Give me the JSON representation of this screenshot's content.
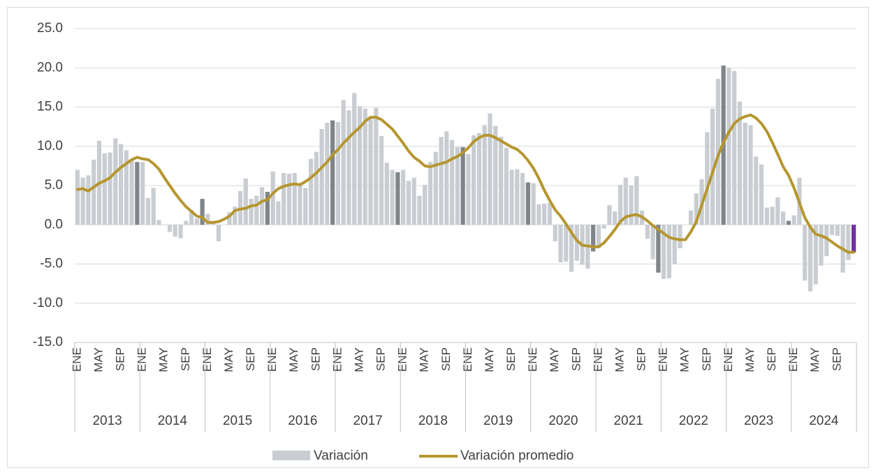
{
  "chart_data": {
    "type": "bar_line",
    "categories": [
      "ENE",
      null,
      null,
      null,
      "MAY",
      null,
      null,
      null,
      "SEP",
      null,
      null,
      null,
      "ENE",
      null,
      null,
      null,
      "MAY",
      null,
      null,
      null,
      "SEP",
      null,
      null,
      null,
      "ENE",
      null,
      null,
      null,
      "MAY",
      null,
      null,
      null,
      "SEP",
      null,
      null,
      null,
      "ENE",
      null,
      null,
      null,
      "MAY",
      null,
      null,
      null,
      "SEP",
      null,
      null,
      null,
      "ENE",
      null,
      null,
      null,
      "MAY",
      null,
      null,
      null,
      "SEP",
      null,
      null,
      null,
      "ENE",
      null,
      null,
      null,
      "MAY",
      null,
      null,
      null,
      "SEP",
      null,
      null,
      null,
      "ENE",
      null,
      null,
      null,
      "MAY",
      null,
      null,
      null,
      "SEP",
      null,
      null,
      null,
      "ENE",
      null,
      null,
      null,
      "MAY",
      null,
      null,
      null,
      "SEP",
      null,
      null,
      null,
      "ENE",
      null,
      null,
      null,
      "MAY",
      null,
      null,
      null,
      "SEP",
      null,
      null,
      null,
      "ENE",
      null,
      null,
      null,
      "MAY",
      null,
      null,
      null,
      "SEP",
      null,
      null,
      null,
      "ENE",
      null,
      null,
      null,
      "MAY",
      null,
      null,
      null,
      "SEP",
      null,
      null,
      null,
      "ENE",
      null,
      null,
      null,
      "MAY",
      null,
      null,
      null,
      "SEP",
      null,
      null,
      null
    ],
    "groups": [
      "2013",
      "2014",
      "2015",
      "2016",
      "2017",
      "2018",
      "2019",
      "2020",
      "2021",
      "2022",
      "2023",
      "2024"
    ],
    "series": [
      {
        "name": "Variación",
        "type": "bar",
        "color": "#c9cdd2",
        "period_end_color": "#7f8588",
        "last_color": "#7030a0",
        "values": [
          7.0,
          6.0,
          6.3,
          8.3,
          10.7,
          9.1,
          9.2,
          11.0,
          10.3,
          9.5,
          8.3,
          8.0,
          8.0,
          3.4,
          4.7,
          0.6,
          0.0,
          -0.9,
          -1.5,
          -1.7,
          0.5,
          1.9,
          0.8,
          3.3,
          1.4,
          0.2,
          -2.1,
          0.0,
          1.6,
          2.3,
          4.3,
          5.9,
          3.3,
          3.7,
          4.8,
          4.2,
          6.8,
          3.0,
          6.6,
          6.5,
          6.6,
          5.3,
          4.7,
          8.4,
          9.3,
          12.2,
          13.0,
          13.3,
          13.1,
          15.9,
          14.6,
          16.8,
          15.1,
          14.8,
          13.6,
          14.9,
          11.3,
          7.9,
          7.0,
          6.7,
          7.0,
          5.6,
          6.0,
          3.7,
          5.1,
          8.0,
          9.3,
          11.2,
          11.9,
          10.8,
          9.9,
          9.9,
          9.0,
          11.4,
          11.7,
          12.7,
          14.2,
          12.6,
          11.2,
          9.8,
          7.0,
          7.1,
          6.6,
          5.4,
          5.3,
          2.6,
          2.7,
          2.8,
          -2.1,
          -4.8,
          -4.7,
          -6.0,
          -4.6,
          -5.1,
          -5.6,
          -3.4,
          -3.0,
          -0.5,
          2.5,
          1.7,
          5.1,
          6.0,
          5.0,
          6.2,
          1.8,
          -1.8,
          -4.4,
          -6.1,
          -6.9,
          -6.8,
          -5.0,
          -3.0,
          0.0,
          1.8,
          4.0,
          5.8,
          11.8,
          14.8,
          18.6,
          20.3,
          20.0,
          19.6,
          15.7,
          13.0,
          12.7,
          8.7,
          7.7,
          2.2,
          2.3,
          3.5,
          1.7,
          0.5,
          1.2,
          6.0,
          -7.1,
          -8.5,
          -7.6,
          -5.2,
          -4.0,
          -1.3,
          -1.4,
          -6.1,
          -4.5,
          -3.5
        ]
      },
      {
        "name": "Variación promedio",
        "type": "line",
        "color": "#b5962f",
        "values": [
          4.5,
          4.6,
          4.3,
          4.8,
          5.3,
          5.6,
          6.0,
          6.7,
          7.3,
          7.8,
          8.3,
          8.6,
          8.4,
          8.3,
          7.8,
          7.1,
          6.0,
          5.0,
          4.0,
          3.1,
          2.3,
          1.7,
          1.1,
          0.9,
          0.3,
          0.3,
          0.4,
          0.7,
          1.1,
          1.8,
          2.0,
          2.1,
          2.4,
          2.5,
          3.0,
          3.2,
          4.0,
          4.6,
          4.9,
          5.1,
          5.2,
          5.1,
          5.5,
          6.0,
          6.6,
          7.3,
          8.0,
          8.9,
          9.6,
          10.4,
          11.1,
          11.8,
          12.4,
          13.2,
          13.7,
          13.7,
          13.4,
          12.8,
          12.2,
          11.3,
          10.4,
          9.4,
          8.6,
          8.1,
          7.5,
          7.4,
          7.6,
          7.8,
          8.0,
          8.4,
          8.7,
          9.2,
          9.8,
          10.6,
          11.1,
          11.4,
          11.4,
          11.1,
          10.7,
          10.3,
          9.9,
          9.6,
          9.0,
          8.2,
          7.2,
          5.9,
          4.4,
          3.1,
          1.9,
          1.1,
          0.1,
          -1.0,
          -2.0,
          -2.6,
          -2.7,
          -2.8,
          -2.8,
          -2.3,
          -1.5,
          -0.6,
          0.4,
          1.0,
          1.2,
          1.3,
          1.0,
          0.5,
          -0.1,
          -0.6,
          -1.1,
          -1.6,
          -1.8,
          -1.9,
          -1.9,
          -0.9,
          0.4,
          2.5,
          4.6,
          6.7,
          8.8,
          10.5,
          11.8,
          12.9,
          13.5,
          13.8,
          14.0,
          13.6,
          12.9,
          11.9,
          10.5,
          9.0,
          7.4,
          6.3,
          4.7,
          2.8,
          0.9,
          -0.3,
          -1.2,
          -1.4,
          -1.7,
          -2.2,
          -2.7,
          -3.1,
          -3.5,
          -3.5
        ]
      }
    ],
    "ylim": [
      -15,
      25
    ],
    "yticks": [
      {
        "value": -15,
        "label": "-15.0"
      },
      {
        "value": -10,
        "label": "-10.0"
      },
      {
        "value": -5,
        "label": "-5.0"
      },
      {
        "value": 0,
        "label": "0.0"
      },
      {
        "value": 5,
        "label": "5.0"
      },
      {
        "value": 10,
        "label": "10.0"
      },
      {
        "value": 15,
        "label": "15.0"
      },
      {
        "value": 20,
        "label": "20.0"
      },
      {
        "value": 25,
        "label": "25.0"
      }
    ],
    "grid": true,
    "legend": "bottom"
  }
}
